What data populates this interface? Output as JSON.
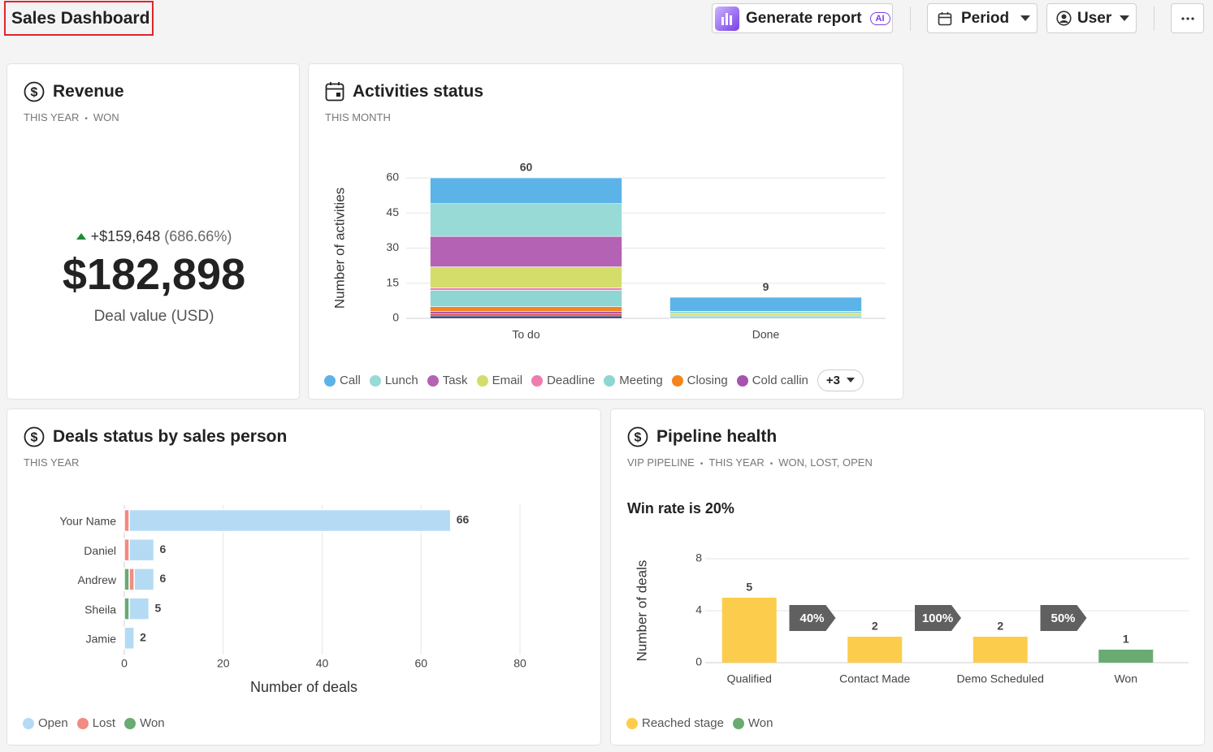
{
  "header": {
    "title": "Sales Dashboard",
    "generate_report": "Generate report",
    "ai_badge": "AI",
    "period": "Period",
    "user": "User"
  },
  "revenue": {
    "title": "Revenue",
    "meta": [
      "THIS YEAR",
      "WON"
    ],
    "change": "+$159,648",
    "change_percent": "(686.66%)",
    "value": "$182,898",
    "label": "Deal value (USD)"
  },
  "chart_data": [
    {
      "type": "stacked_bar",
      "title": "Activities status",
      "meta": [
        "THIS MONTH"
      ],
      "y_label": "Number of activities",
      "categories": [
        "To do",
        "Done"
      ],
      "series": [
        {
          "name": "Call",
          "color": "#5cb3e8",
          "values": [
            11,
            6
          ]
        },
        {
          "name": "Lunch",
          "color": "#98dad6",
          "values": [
            14,
            1
          ]
        },
        {
          "name": "Task",
          "color": "#b462b3",
          "values": [
            13,
            0
          ]
        },
        {
          "name": "Email",
          "color": "#d4dd6a",
          "values": [
            9,
            1
          ]
        },
        {
          "name": "Deadline",
          "color": "#f07cae",
          "values": [
            1,
            0
          ]
        },
        {
          "name": "Meeting",
          "color": "#8fd5d3",
          "values": [
            7,
            1
          ]
        },
        {
          "name": "Closing",
          "color": "#f5841f",
          "values": [
            2,
            0
          ]
        },
        {
          "name": "Cold callin",
          "color": "#a653b0",
          "values": [
            1,
            0
          ]
        },
        {
          "color": "#dd4a48",
          "values": [
            1,
            0
          ]
        },
        {
          "color": "#2b2f6b",
          "values": [
            1,
            0
          ]
        }
      ],
      "totals": [
        60,
        9
      ],
      "ylim": [
        0,
        60
      ],
      "yticks": [
        0,
        15,
        30,
        45,
        60
      ],
      "grid": true,
      "legend_more": "+3"
    },
    {
      "type": "horizontal_stacked_bar",
      "title": "Deals status by sales person",
      "meta": [
        "THIS YEAR"
      ],
      "x_label": "Number of deals",
      "categories": [
        "Your Name",
        "Daniel",
        "Andrew",
        "Sheila",
        "Jamie"
      ],
      "series": [
        {
          "name": "Open",
          "color": "#b5dbf4",
          "values": [
            65,
            5,
            4,
            4,
            2
          ]
        },
        {
          "name": "Lost",
          "color": "#f28b82",
          "values": [
            1,
            1,
            1,
            0,
            0
          ]
        },
        {
          "name": "Won",
          "color": "#6aaa73",
          "values": [
            0,
            0,
            1,
            1,
            0
          ]
        }
      ],
      "totals": [
        66,
        6,
        6,
        5,
        2
      ],
      "xlim": [
        0,
        80
      ],
      "xticks": [
        0,
        20,
        40,
        60,
        80
      ],
      "grid": true
    },
    {
      "type": "funnel_bar",
      "title": "Pipeline health",
      "meta": [
        "VIP PIPELINE",
        "THIS YEAR",
        "WON, LOST, OPEN"
      ],
      "headline": "Win rate is 20%",
      "y_label": "Number of deals",
      "categories": [
        "Qualified",
        "Contact Made",
        "Demo Scheduled",
        "Won"
      ],
      "series": [
        {
          "name": "Reached stage",
          "color": "#fccd4c",
          "values": [
            5,
            2,
            2,
            null
          ]
        },
        {
          "name": "Won",
          "color": "#6aaa73",
          "values": [
            null,
            null,
            null,
            1
          ]
        }
      ],
      "conversions": {
        "values": [
          40,
          100,
          50
        ],
        "value_labels": [
          "40%",
          "100%",
          "50%"
        ]
      },
      "ylim": [
        0,
        8
      ],
      "yticks": [
        0,
        4,
        8
      ],
      "grid": true
    }
  ]
}
